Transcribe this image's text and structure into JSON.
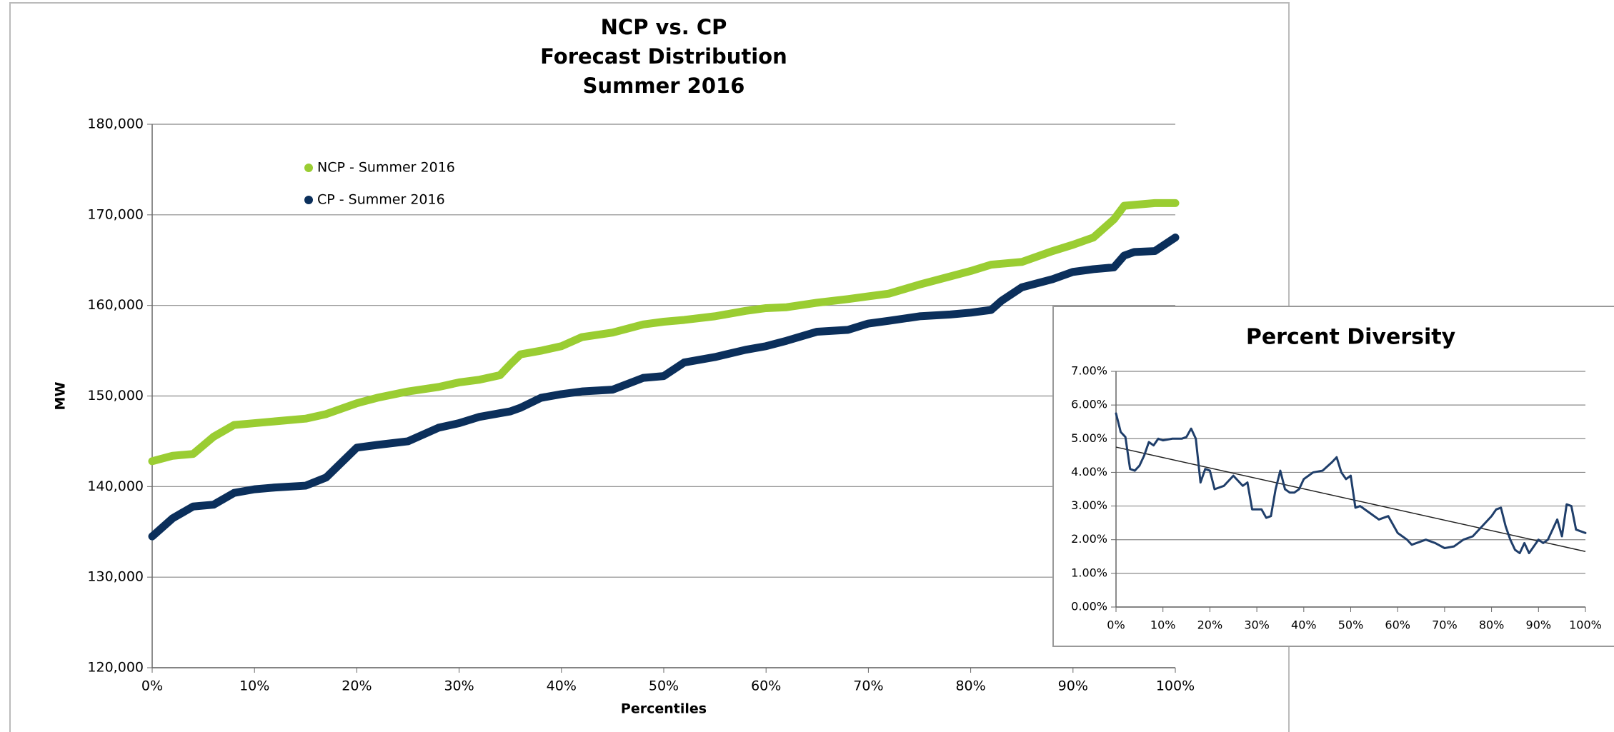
{
  "chart_data": [
    {
      "type": "line",
      "title": "NCP vs. CP",
      "subtitle": [
        "Forecast Distribution",
        "Summer 2016"
      ],
      "xlabel": "Percentiles",
      "ylabel": "MW",
      "x": [
        0,
        2,
        4,
        6,
        8,
        10,
        12,
        15,
        17,
        20,
        22,
        25,
        28,
        30,
        32,
        34,
        35,
        36,
        38,
        40,
        42,
        45,
        48,
        50,
        52,
        55,
        58,
        60,
        62,
        65,
        68,
        70,
        72,
        75,
        78,
        80,
        82,
        83,
        85,
        88,
        90,
        92,
        94,
        95,
        96,
        98,
        100
      ],
      "series": [
        {
          "name": "NCP - Summer 2016",
          "color": "#9acd32",
          "values": [
            142800,
            143400,
            143600,
            145500,
            146800,
            147000,
            147200,
            147500,
            148000,
            149200,
            149800,
            150500,
            151000,
            151500,
            151800,
            152300,
            153500,
            154600,
            155000,
            155500,
            156500,
            157000,
            157900,
            158200,
            158400,
            158800,
            159400,
            159700,
            159800,
            160300,
            160700,
            161000,
            161300,
            162300,
            163200,
            163800,
            164500,
            164600,
            164800,
            166000,
            166700,
            167500,
            169500,
            171000,
            171100,
            171300,
            171300
          ]
        },
        {
          "name": "CP - Summer 2016",
          "color": "#0b2f5b",
          "values": [
            134500,
            136500,
            137800,
            138000,
            139300,
            139700,
            139900,
            140100,
            141000,
            144300,
            144600,
            145000,
            146500,
            147000,
            147700,
            148100,
            148300,
            148700,
            149800,
            150200,
            150500,
            150700,
            152000,
            152200,
            153700,
            154300,
            155100,
            155500,
            156100,
            157100,
            157300,
            158000,
            158300,
            158800,
            159000,
            159200,
            159500,
            160500,
            162000,
            162900,
            163700,
            164000,
            164200,
            165500,
            165900,
            166000,
            167500
          ]
        }
      ],
      "xlim": [
        0,
        100
      ],
      "xticks": [
        {
          "value": 0,
          "label": "0%"
        },
        {
          "value": 10,
          "label": "10%"
        },
        {
          "value": 20,
          "label": "20%"
        },
        {
          "value": 30,
          "label": "30%"
        },
        {
          "value": 40,
          "label": "40%"
        },
        {
          "value": 50,
          "label": "50%"
        },
        {
          "value": 60,
          "label": "60%"
        },
        {
          "value": 70,
          "label": "70%"
        },
        {
          "value": 80,
          "label": "80%"
        },
        {
          "value": 90,
          "label": "90%"
        },
        {
          "value": 100,
          "label": "100%"
        }
      ],
      "ylim": [
        120000,
        180000
      ],
      "yticks": [
        {
          "value": 120000,
          "label": "120,000"
        },
        {
          "value": 130000,
          "label": "130,000"
        },
        {
          "value": 140000,
          "label": "140,000"
        },
        {
          "value": 150000,
          "label": "150,000"
        },
        {
          "value": 160000,
          "label": "160,000"
        },
        {
          "value": 170000,
          "label": "170,000"
        },
        {
          "value": 180000,
          "label": "180,000"
        }
      ],
      "grid": true,
      "legend": "upper left"
    },
    {
      "type": "line",
      "title": "Percent Diversity",
      "x": [
        0,
        1,
        2,
        3,
        4,
        5,
        6,
        7,
        8,
        9,
        10,
        12,
        14,
        15,
        16,
        17,
        18,
        19,
        20,
        21,
        23,
        25,
        27,
        28,
        29,
        31,
        32,
        33,
        34,
        35,
        36,
        37,
        38,
        39,
        40,
        42,
        44,
        46,
        47,
        48,
        49,
        50,
        51,
        52,
        54,
        56,
        58,
        60,
        61,
        62,
        63,
        64,
        66,
        68,
        70,
        72,
        74,
        76,
        78,
        80,
        81,
        82,
        83,
        84,
        85,
        86,
        87,
        88,
        89,
        90,
        91,
        92,
        93,
        94,
        95,
        96,
        97,
        98,
        99,
        100
      ],
      "series": [
        {
          "color": "#1f3e6a",
          "values": [
            5.75,
            5.2,
            5.05,
            4.1,
            4.05,
            4.2,
            4.5,
            4.9,
            4.8,
            5.0,
            4.95,
            5.0,
            5.0,
            5.05,
            5.3,
            5.0,
            3.7,
            4.1,
            4.05,
            3.5,
            3.6,
            3.9,
            3.6,
            3.7,
            2.9,
            2.9,
            2.65,
            2.7,
            3.5,
            4.05,
            3.5,
            3.4,
            3.4,
            3.5,
            3.8,
            4.0,
            4.05,
            4.3,
            4.45,
            4.0,
            3.8,
            3.9,
            2.95,
            3.0,
            2.8,
            2.6,
            2.7,
            2.2,
            2.1,
            2.0,
            1.85,
            1.9,
            2.0,
            1.9,
            1.75,
            1.8,
            2.0,
            2.1,
            2.4,
            2.7,
            2.9,
            2.95,
            2.4,
            2.0,
            1.7,
            1.6,
            1.9,
            1.6,
            1.8,
            2.0,
            1.9,
            2.0,
            2.3,
            2.6,
            2.1,
            3.05,
            3.0,
            2.3,
            2.25,
            2.2
          ]
        }
      ],
      "trendline": {
        "x": [
          0,
          100
        ],
        "values": [
          4.75,
          1.65
        ],
        "color": "#222222"
      },
      "xlim": [
        0,
        100
      ],
      "xticks": [
        {
          "value": 0,
          "label": "0%"
        },
        {
          "value": 10,
          "label": "10%"
        },
        {
          "value": 20,
          "label": "20%"
        },
        {
          "value": 30,
          "label": "30%"
        },
        {
          "value": 40,
          "label": "40%"
        },
        {
          "value": 50,
          "label": "50%"
        },
        {
          "value": 60,
          "label": "60%"
        },
        {
          "value": 70,
          "label": "70%"
        },
        {
          "value": 80,
          "label": "80%"
        },
        {
          "value": 90,
          "label": "90%"
        },
        {
          "value": 100,
          "label": "100%"
        }
      ],
      "ylim": [
        0,
        7
      ],
      "yticks": [
        {
          "value": 0,
          "label": "0.00%"
        },
        {
          "value": 1,
          "label": "1.00%"
        },
        {
          "value": 2,
          "label": "2.00%"
        },
        {
          "value": 3,
          "label": "3.00%"
        },
        {
          "value": 4,
          "label": "4.00%"
        },
        {
          "value": 5,
          "label": "5.00%"
        },
        {
          "value": 6,
          "label": "6.00%"
        },
        {
          "value": 7,
          "label": "7.00%"
        }
      ],
      "grid": true
    }
  ]
}
